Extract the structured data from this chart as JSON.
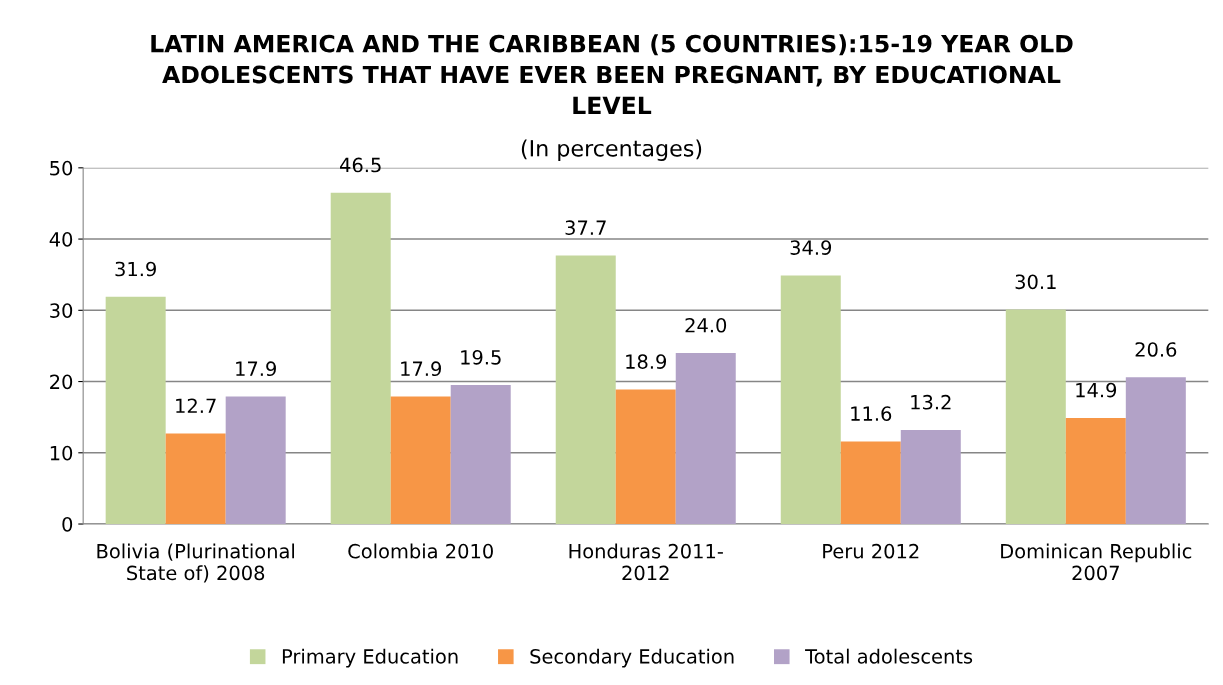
{
  "chart_data": {
    "type": "bar",
    "title": "LATIN AMERICA AND THE CARIBBEAN (5 COUNTRIES):15-19 YEAR OLD\nADOLESCENTS THAT HAVE EVER BEEN PREGNANT, BY EDUCATIONAL\nLEVEL",
    "subtitle": "(In percentages)",
    "categories": [
      "Bolivia (Plurinational\nState of) 2008",
      "Colombia 2010",
      "Honduras 2011-\n2012",
      "Peru 2012",
      "Dominican Republic\n2007"
    ],
    "series": [
      {
        "name": "Primary Education",
        "color": "#c3d69b",
        "values": [
          31.9,
          46.5,
          37.7,
          34.9,
          30.1
        ],
        "value_labels": [
          "31.9",
          "46.5",
          "37.7",
          "34.9",
          "30.1"
        ]
      },
      {
        "name": "Secondary Education",
        "color": "#f79646",
        "values": [
          12.7,
          17.9,
          18.9,
          11.6,
          14.9
        ],
        "value_labels": [
          "12.7",
          "17.9",
          "18.9",
          "11.6",
          "14.9"
        ]
      },
      {
        "name": "Total adolescents",
        "color": "#b2a2c7",
        "values": [
          17.9,
          19.5,
          24.0,
          13.2,
          20.6
        ],
        "value_labels": [
          "17.9",
          "19.5",
          "24.0",
          "13.2",
          "20.6"
        ]
      }
    ],
    "ylim": [
      0,
      50
    ],
    "yticks": [
      0,
      10,
      20,
      30,
      40,
      50
    ],
    "grid": "y",
    "legend": "bottom"
  }
}
